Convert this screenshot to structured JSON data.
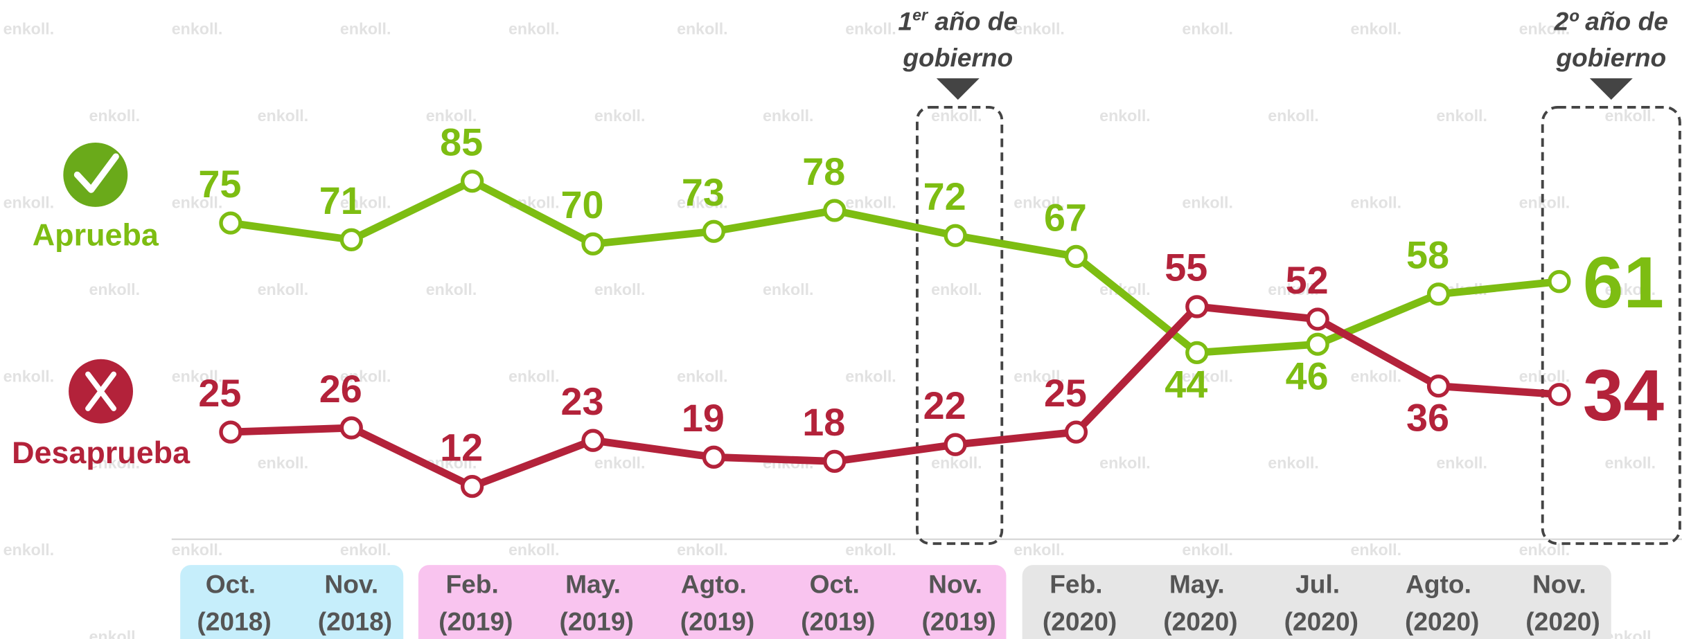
{
  "chart_data": {
    "type": "line",
    "categories": [
      "Oct. (2018)",
      "Nov. (2018)",
      "Feb. (2019)",
      "May. (2019)",
      "Agto. (2019)",
      "Oct. (2019)",
      "Nov. (2019)",
      "Feb. (2020)",
      "May. (2020)",
      "Jul. (2020)",
      "Agto. (2020)",
      "Nov. (2020)"
    ],
    "series": [
      {
        "name": "Aprueba",
        "color": "#7dbd12",
        "values": [
          75,
          71,
          85,
          70,
          73,
          78,
          72,
          67,
          44,
          46,
          58,
          61
        ]
      },
      {
        "name": "Desaprueba",
        "color": "#b3223a",
        "values": [
          25,
          26,
          12,
          23,
          19,
          18,
          22,
          25,
          55,
          52,
          36,
          34
        ]
      }
    ],
    "annotations": [
      {
        "line1": "1er año de",
        "line2": "gobierno"
      },
      {
        "line1": "2º año de",
        "line2": "gobierno"
      }
    ],
    "watermark": "enkoll."
  }
}
